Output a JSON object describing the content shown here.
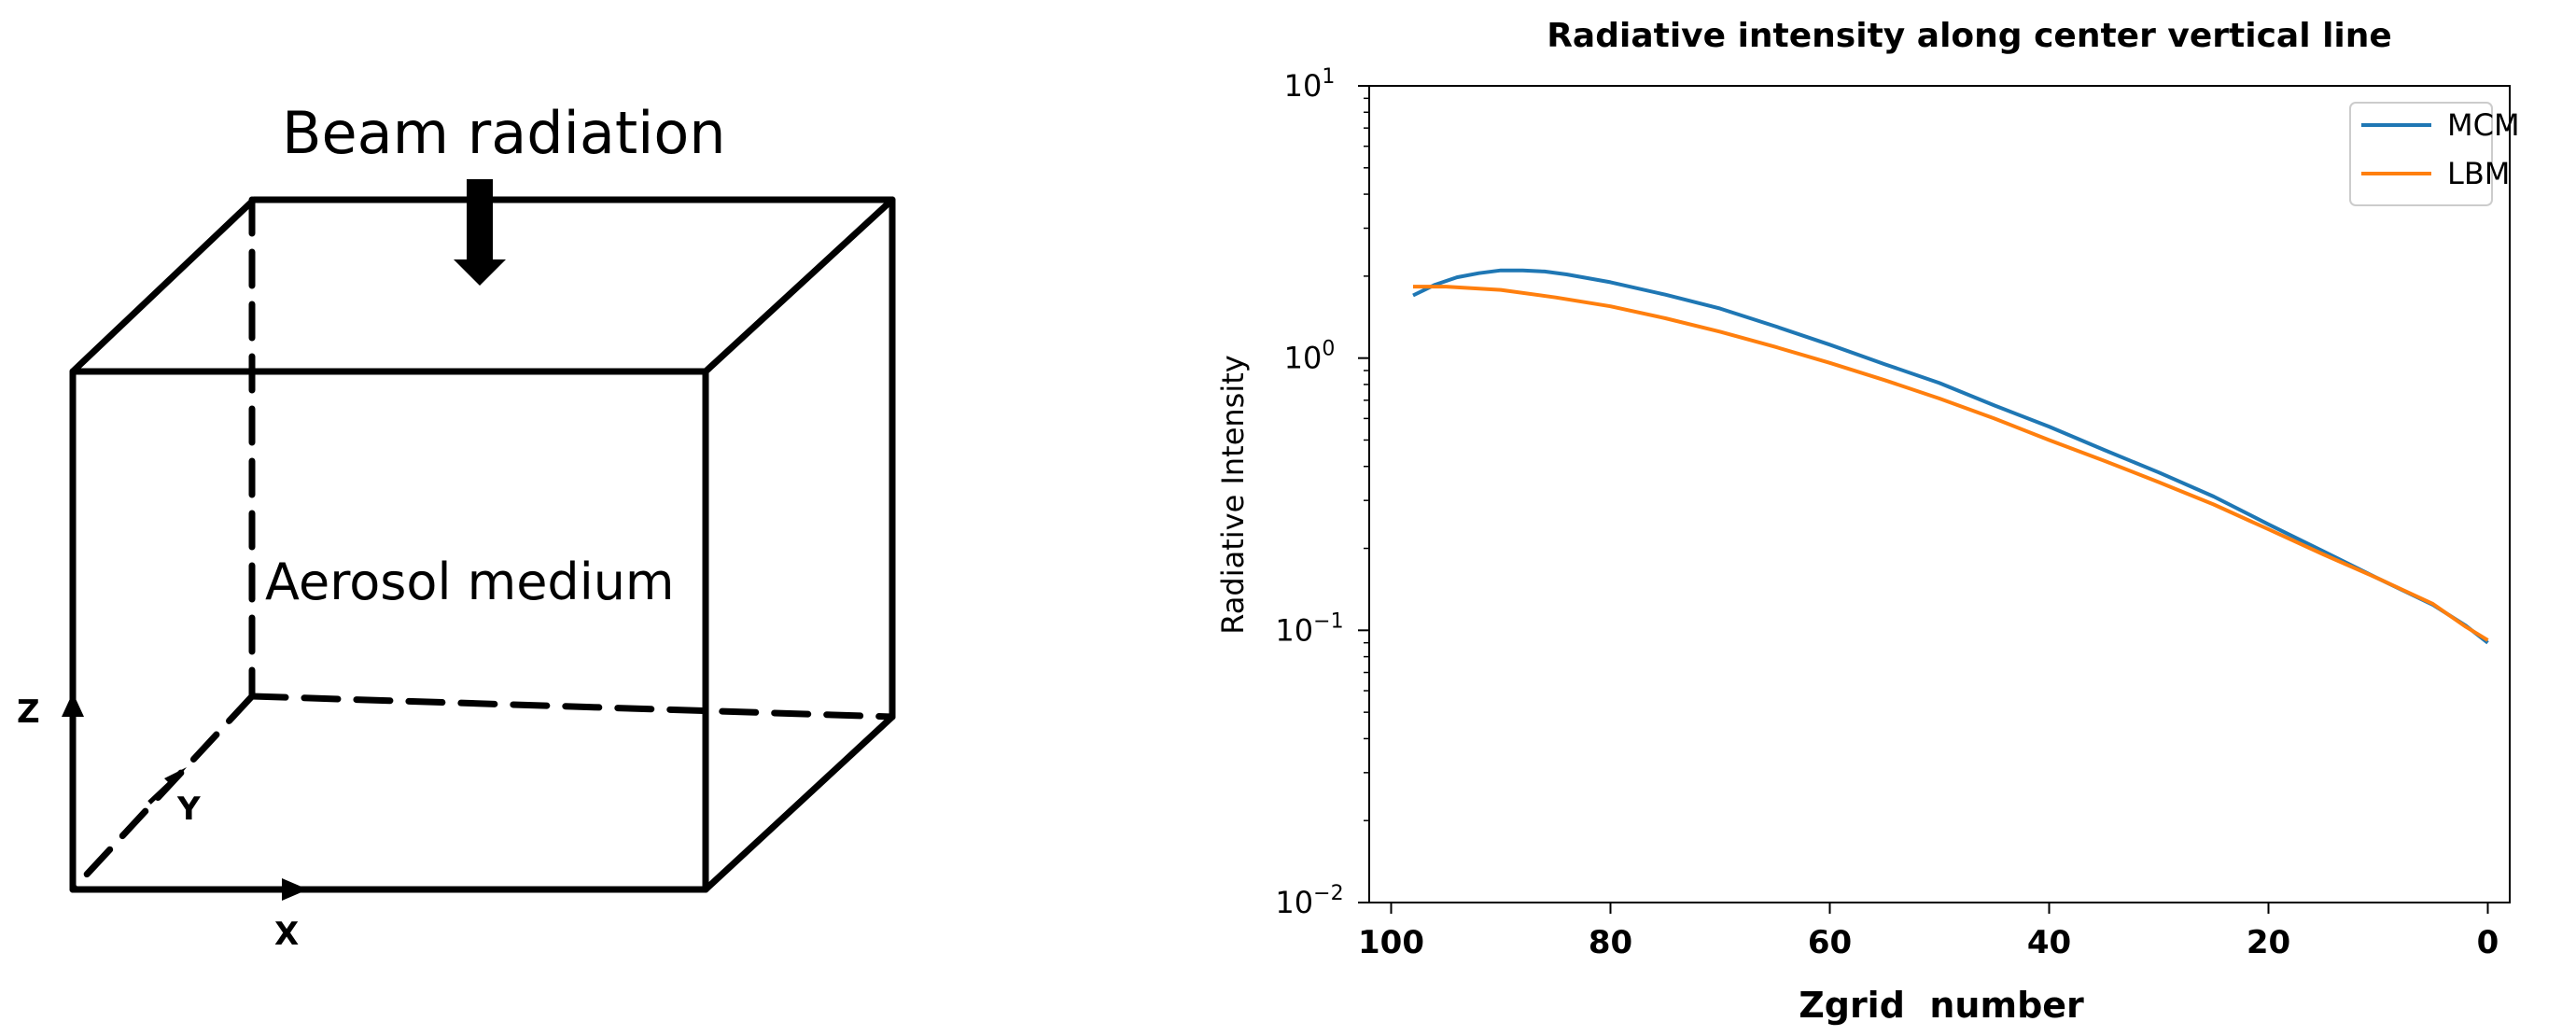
{
  "diagram": {
    "beam_label": "Beam radiation",
    "medium_label": "Aerosol medium",
    "axis_z": "Z",
    "axis_y": "Y",
    "axis_x": "X"
  },
  "chart_data": {
    "type": "line",
    "title": "Radiative intensity along center vertical line",
    "xlabel": "Zgrid  number",
    "ylabel": "Radiative Intensity",
    "xlim": [
      102,
      -2
    ],
    "ylim": [
      0.01,
      10
    ],
    "yscale": "log",
    "x_ticks": [
      100,
      80,
      60,
      40,
      20,
      0
    ],
    "y_ticks": [
      {
        "base": "10",
        "exp": "1",
        "value": 10
      },
      {
        "base": "10",
        "exp": "0",
        "value": 1
      },
      {
        "base": "10",
        "exp": "−1",
        "value": 0.1
      },
      {
        "base": "10",
        "exp": "−2",
        "value": 0.01
      }
    ],
    "legend": "top-right",
    "grid": false,
    "series": [
      {
        "name": "MCM",
        "color": "#1f77b4",
        "x": [
          98,
          96,
          94,
          92,
          90,
          88,
          86,
          84,
          80,
          75,
          70,
          65,
          60,
          55,
          50,
          45,
          40,
          35,
          30,
          25,
          20,
          15,
          10,
          5,
          2,
          0
        ],
        "y": [
          1.7,
          1.86,
          1.98,
          2.05,
          2.1,
          2.1,
          2.08,
          2.03,
          1.9,
          1.71,
          1.52,
          1.31,
          1.12,
          0.95,
          0.81,
          0.67,
          0.56,
          0.46,
          0.38,
          0.31,
          0.245,
          0.195,
          0.155,
          0.124,
          0.104,
          0.09
        ]
      },
      {
        "name": "LBM",
        "color": "#ff7f0e",
        "x": [
          98,
          95,
          90,
          85,
          80,
          75,
          70,
          65,
          60,
          55,
          50,
          45,
          40,
          35,
          30,
          25,
          20,
          15,
          10,
          5,
          2,
          0
        ],
        "y": [
          1.83,
          1.83,
          1.78,
          1.67,
          1.55,
          1.4,
          1.25,
          1.1,
          0.96,
          0.83,
          0.71,
          0.6,
          0.5,
          0.42,
          0.35,
          0.29,
          0.235,
          0.19,
          0.155,
          0.125,
          0.103,
          0.092
        ]
      }
    ]
  }
}
